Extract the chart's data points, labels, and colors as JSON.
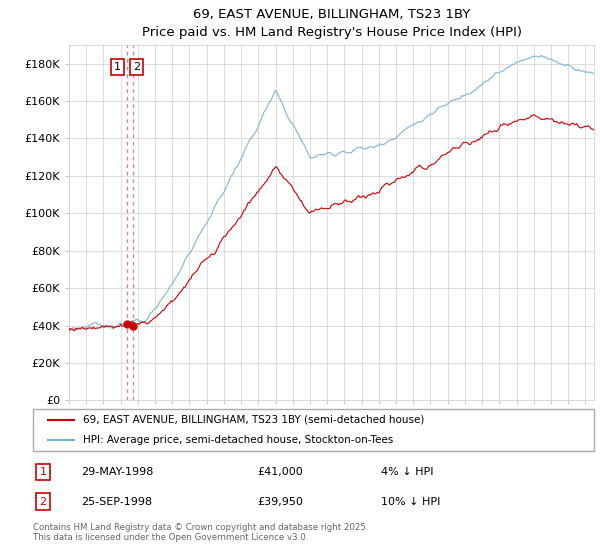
{
  "title": "69, EAST AVENUE, BILLINGHAM, TS23 1BY",
  "subtitle": "Price paid vs. HM Land Registry's House Price Index (HPI)",
  "legend_line1": "69, EAST AVENUE, BILLINGHAM, TS23 1BY (semi-detached house)",
  "legend_line2": "HPI: Average price, semi-detached house, Stockton-on-Tees",
  "transaction1_date": "29-MAY-1998",
  "transaction1_price": "£41,000",
  "transaction1_hpi": "4% ↓ HPI",
  "transaction2_date": "25-SEP-1998",
  "transaction2_price": "£39,950",
  "transaction2_hpi": "10% ↓ HPI",
  "footnote": "Contains HM Land Registry data © Crown copyright and database right 2025.\nThis data is licensed under the Open Government Licence v3.0.",
  "hpi_color": "#7ab0d4",
  "price_color": "#cc0000",
  "vline_color": "#e87a7a",
  "ylim_min": 0,
  "ylim_max": 190000,
  "yticks": [
    0,
    20000,
    40000,
    60000,
    80000,
    100000,
    120000,
    140000,
    160000,
    180000
  ],
  "year_start": 1995,
  "year_end": 2025,
  "background_color": "#ffffff",
  "grid_color": "#d0d0d0",
  "t1_year": 1998.37,
  "t2_year": 1998.71,
  "t1_price": 41000,
  "t2_price": 39950
}
